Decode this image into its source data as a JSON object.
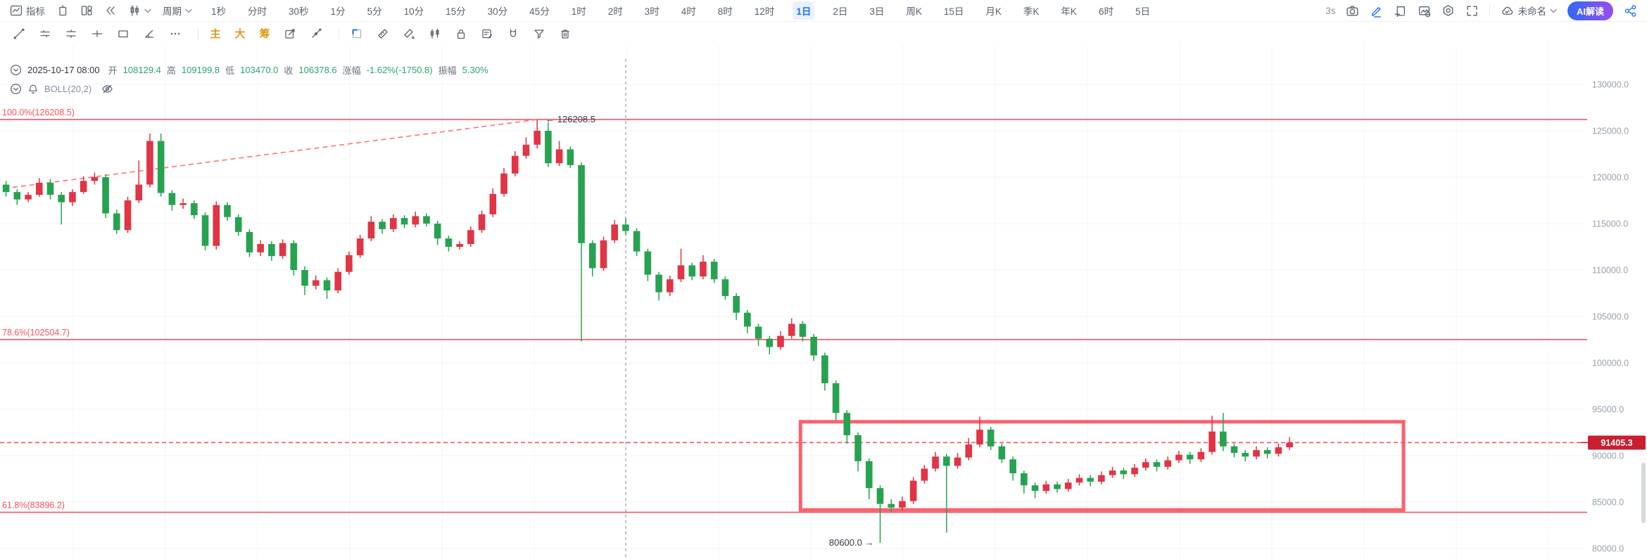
{
  "toolbar_main": {
    "indicators_label": "指标",
    "period_label": "周期",
    "intervals": [
      "1秒",
      "分时",
      "30秒",
      "1分",
      "5分",
      "10分",
      "15分",
      "30分",
      "45分",
      "1时",
      "2时",
      "3时",
      "4时",
      "8时",
      "12时",
      "1日",
      "2日",
      "3日",
      "周K",
      "15日",
      "月K",
      "季K",
      "年K",
      "6时",
      "5日"
    ],
    "selected_interval": "1日",
    "countdown": "3s",
    "doc_name": "未命名",
    "ai_button_label": "AI解读",
    "left_icons": [
      "indicators-icon",
      "compare-icon",
      "layout-icon",
      "history-back-icon",
      "chart-style-icon",
      "chevron-down-icon"
    ],
    "right_icons": [
      "camera-icon",
      "edit-icon",
      "add-pane-icon",
      "screenshot-icon",
      "settings-icon",
      "fullscreen-icon",
      "cloud-check-icon",
      "chevron-down-icon",
      "share-icon"
    ]
  },
  "toolbar_draw": {
    "tool_icons": [
      "trend-line-icon",
      "parallel-lines-icon",
      "horizontal-lines-icon",
      "cross-line-icon",
      "rectangle-icon",
      "trend-angle-icon",
      "more-icon",
      "box-edit-icon",
      "angle-dot-icon",
      "select-rect-icon",
      "ruler-icon",
      "eraser-icon",
      "pattern-icon",
      "lock-icon",
      "note-icon",
      "magnet-icon",
      "filter-icon",
      "delete-icon"
    ],
    "highlight_tools": [
      "主",
      "大",
      "筹"
    ]
  },
  "ohlc_bar": {
    "datetime": "2025-10-17 08:00",
    "open_label": "开",
    "open": "108129.4",
    "high_label": "高",
    "high": "109199.8",
    "low_label": "低",
    "low": "103470.0",
    "close_label": "收",
    "close": "106378.6",
    "change_label": "涨幅",
    "change": "-1.62%(-1750.8)",
    "amplitude_label": "振幅",
    "amplitude": "5.30%"
  },
  "indicator_row": {
    "name": "BOLL(20,2)"
  },
  "colors": {
    "up": "#e13445",
    "down": "#27a350",
    "drawing": "#f7525f",
    "trend_dash": "#ff7a7a",
    "badge_bg": "#cb1e31",
    "accent": "#1c6ef2",
    "ohlc_value": "#2ca573",
    "axis_text": "#99a1ac",
    "annotation_text": "#333a45",
    "grid_h": "#f2f3f5",
    "grid_v": "#f6f6f8",
    "crosshair": "#9aa2b2"
  },
  "chart_data": {
    "type": "candlestick",
    "title": "",
    "convention": "red=up, green=down (CN)",
    "y_axis": {
      "ticks": [
        130000,
        125000,
        120000,
        115000,
        110000,
        105000,
        100000,
        95000,
        90000,
        85000,
        80000
      ],
      "tick_suffix": ".0"
    },
    "x_axis": {
      "visible": false
    },
    "current_price": 91405.3,
    "fib_levels": [
      {
        "label": "100.0%(126208.5)",
        "price": 126208.5
      },
      {
        "label": "78.6%(102504.7)",
        "price": 102504.7
      },
      {
        "label": "61.8%(83896.2)",
        "price": 83896.2
      }
    ],
    "trendline": {
      "x1_index": 0.6,
      "price1": 118900,
      "x2_index": 48,
      "price2": 126208.5,
      "style": "dashed"
    },
    "crosshair_index": 56,
    "box": {
      "x1_index": 71.8,
      "x2_index": 126.3,
      "price_top": 93650,
      "price_bottom": 84150
    },
    "annotations": [
      {
        "text": "126208.5",
        "arrow": "left",
        "at_index": 48,
        "price": 126208.5
      },
      {
        "text": "80600.0",
        "arrow": "right",
        "at_index": 79,
        "price": 80600
      }
    ],
    "candles": [
      [
        119200,
        119600,
        117900,
        118400
      ],
      [
        118400,
        118700,
        117000,
        117600
      ],
      [
        117600,
        118400,
        117300,
        118100
      ],
      [
        118100,
        119900,
        117900,
        119400
      ],
      [
        119400,
        119800,
        117600,
        118100
      ],
      [
        118100,
        118400,
        114900,
        117300
      ],
      [
        117300,
        118700,
        116900,
        118400
      ],
      [
        118400,
        120100,
        118200,
        119600
      ],
      [
        119600,
        120500,
        119200,
        120000
      ],
      [
        120000,
        120300,
        115600,
        116100
      ],
      [
        116100,
        116500,
        113900,
        114300
      ],
      [
        114300,
        117900,
        114000,
        117500
      ],
      [
        117500,
        121800,
        117200,
        119200
      ],
      [
        119200,
        124700,
        118900,
        123900
      ],
      [
        123900,
        124700,
        117900,
        118300
      ],
      [
        118300,
        118600,
        116400,
        117000
      ],
      [
        117000,
        117700,
        116600,
        117200
      ],
      [
        117200,
        117500,
        115500,
        115900
      ],
      [
        115900,
        116200,
        112100,
        112600
      ],
      [
        112600,
        117400,
        112200,
        117000
      ],
      [
        117000,
        117300,
        115300,
        115700
      ],
      [
        115700,
        116000,
        113700,
        114100
      ],
      [
        114100,
        114400,
        111400,
        111900
      ],
      [
        111900,
        113200,
        111500,
        112800
      ],
      [
        112800,
        113100,
        111000,
        111500
      ],
      [
        111500,
        113300,
        111200,
        112900
      ],
      [
        112900,
        113200,
        109400,
        110000
      ],
      [
        110000,
        110400,
        107300,
        108300
      ],
      [
        108300,
        109400,
        107900,
        108900
      ],
      [
        108900,
        109200,
        106900,
        107800
      ],
      [
        107800,
        110200,
        107500,
        109800
      ],
      [
        109800,
        112000,
        109500,
        111600
      ],
      [
        111600,
        113800,
        111300,
        113400
      ],
      [
        113400,
        115800,
        113100,
        115200
      ],
      [
        115200,
        115500,
        113900,
        114400
      ],
      [
        114400,
        116000,
        114100,
        115600
      ],
      [
        115600,
        115900,
        114500,
        114900
      ],
      [
        114900,
        116300,
        114600,
        115800
      ],
      [
        115800,
        116100,
        114700,
        115000
      ],
      [
        115000,
        115300,
        112700,
        113400
      ],
      [
        113400,
        113700,
        112000,
        112500
      ],
      [
        112500,
        113100,
        112200,
        112800
      ],
      [
        112800,
        114700,
        112500,
        114300
      ],
      [
        114300,
        116400,
        114000,
        116000
      ],
      [
        116000,
        118800,
        115700,
        118200
      ],
      [
        118200,
        121000,
        117900,
        120400
      ],
      [
        120400,
        122800,
        120100,
        122300
      ],
      [
        122300,
        124300,
        122000,
        123500
      ],
      [
        123500,
        126208,
        123100,
        125000
      ],
      [
        125000,
        125900,
        121100,
        121500
      ],
      [
        121500,
        123900,
        121200,
        123000
      ],
      [
        123000,
        123300,
        121000,
        121300
      ],
      [
        121300,
        121600,
        102300,
        112900
      ],
      [
        112900,
        113200,
        109300,
        110200
      ],
      [
        110200,
        113600,
        109900,
        113200
      ],
      [
        113200,
        115400,
        112900,
        114900
      ],
      [
        114900,
        115600,
        113800,
        114200
      ],
      [
        114200,
        114500,
        111500,
        112000
      ],
      [
        112000,
        112300,
        108800,
        109500
      ],
      [
        109500,
        109800,
        106700,
        107600
      ],
      [
        107600,
        109400,
        107200,
        109000
      ],
      [
        109000,
        112300,
        108700,
        110500
      ],
      [
        110500,
        110800,
        108900,
        109300
      ],
      [
        109300,
        111600,
        109000,
        110900
      ],
      [
        110900,
        111200,
        108600,
        109000
      ],
      [
        109000,
        109300,
        106800,
        107200
      ],
      [
        107200,
        107500,
        104600,
        105400
      ],
      [
        105400,
        105700,
        103200,
        103900
      ],
      [
        103900,
        104200,
        101800,
        102600
      ],
      [
        102600,
        102900,
        100900,
        101700
      ],
      [
        101700,
        103400,
        101400,
        102900
      ],
      [
        102900,
        104800,
        102600,
        104200
      ],
      [
        104200,
        104500,
        102300,
        102800
      ],
      [
        102800,
        103100,
        100200,
        100800
      ],
      [
        100800,
        101100,
        97000,
        97800
      ],
      [
        97800,
        98100,
        93800,
        94600
      ],
      [
        94600,
        94900,
        91300,
        92200
      ],
      [
        92200,
        92500,
        88300,
        89400
      ],
      [
        89400,
        89700,
        85300,
        86500
      ],
      [
        86500,
        86800,
        80600,
        84800
      ],
      [
        84800,
        85300,
        83900,
        84400
      ],
      [
        84400,
        85600,
        84100,
        85100
      ],
      [
        85100,
        87700,
        84800,
        87300
      ],
      [
        87300,
        89000,
        87000,
        88600
      ],
      [
        88600,
        90400,
        88300,
        89900
      ],
      [
        89900,
        90200,
        81700,
        88900
      ],
      [
        88900,
        90300,
        88600,
        89800
      ],
      [
        89800,
        91900,
        89500,
        91200
      ],
      [
        91200,
        94200,
        90900,
        92800
      ],
      [
        92800,
        93100,
        90600,
        91000
      ],
      [
        91000,
        91300,
        89200,
        89600
      ],
      [
        89600,
        89900,
        87300,
        88100
      ],
      [
        88100,
        88400,
        85900,
        86800
      ],
      [
        86800,
        87100,
        85400,
        86200
      ],
      [
        86200,
        87300,
        85900,
        86900
      ],
      [
        86900,
        87200,
        86000,
        86400
      ],
      [
        86400,
        87500,
        86100,
        87100
      ],
      [
        87100,
        88000,
        86800,
        87600
      ],
      [
        87600,
        87900,
        86700,
        87200
      ],
      [
        87200,
        88300,
        86900,
        87900
      ],
      [
        87900,
        88800,
        87600,
        88400
      ],
      [
        88400,
        88700,
        87500,
        88000
      ],
      [
        88000,
        89100,
        87700,
        88700
      ],
      [
        88700,
        89700,
        88400,
        89300
      ],
      [
        89300,
        89600,
        88300,
        88800
      ],
      [
        88800,
        89900,
        88500,
        89500
      ],
      [
        89500,
        90500,
        89200,
        90100
      ],
      [
        90100,
        90400,
        89100,
        89600
      ],
      [
        89600,
        90800,
        89300,
        90400
      ],
      [
        90400,
        94300,
        90100,
        92600
      ],
      [
        92600,
        94600,
        90500,
        91000
      ],
      [
        91000,
        91300,
        89800,
        90300
      ],
      [
        90300,
        90600,
        89400,
        89900
      ],
      [
        89900,
        91000,
        89600,
        90600
      ],
      [
        90600,
        90900,
        89700,
        90200
      ],
      [
        90200,
        91300,
        89900,
        90900
      ],
      [
        90900,
        92000,
        90600,
        91405.3
      ]
    ]
  }
}
